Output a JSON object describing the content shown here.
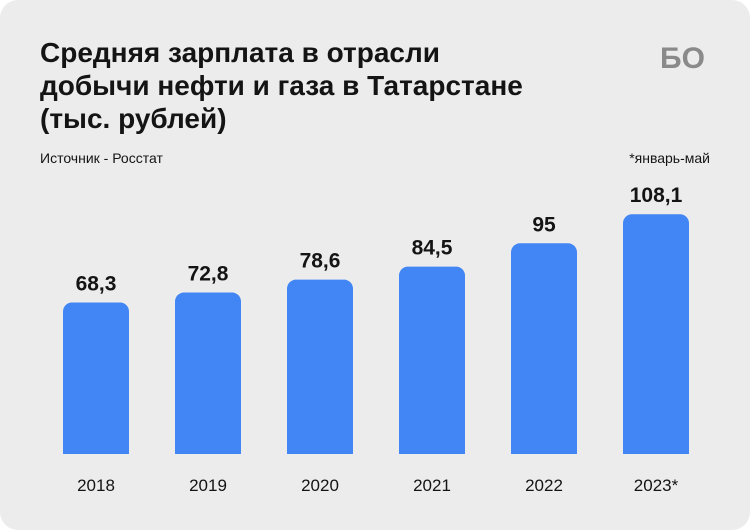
{
  "header": {
    "title_lines": [
      "Средняя зарплата в отрасли",
      "добычи нефти и газа в Татарстане",
      "(тыс. рублей)"
    ],
    "source": "Источник - Росстат",
    "note": "*январь-май",
    "logo": "БО"
  },
  "colors": {
    "bar": "#4285f4",
    "background": "#ececec",
    "text": "#141414"
  },
  "chart_data": {
    "type": "bar",
    "title": "Средняя зарплата в отрасли добычи нефти и газа в Татарстане (тыс. рублей)",
    "categories": [
      "2018",
      "2019",
      "2020",
      "2021",
      "2022",
      "2023*"
    ],
    "values": [
      68.3,
      72.8,
      78.6,
      84.5,
      95,
      108.1
    ],
    "value_labels": [
      "68,3",
      "72,8",
      "78,6",
      "84,5",
      "95",
      "108,1"
    ],
    "xlabel": "",
    "ylabel": "",
    "ylim": [
      0,
      110
    ],
    "grid": false,
    "legend": "none"
  }
}
